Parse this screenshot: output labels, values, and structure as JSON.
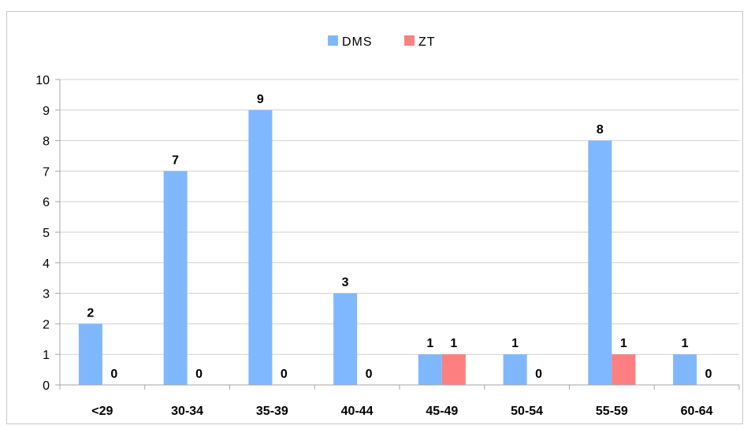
{
  "chart_data": {
    "type": "bar",
    "categories": [
      "<29",
      "30-34",
      "35-39",
      "40-44",
      "45-49",
      "50-54",
      "55-59",
      "60-64"
    ],
    "series": [
      {
        "name": "DMS",
        "values": [
          2,
          7,
          9,
          3,
          1,
          1,
          8,
          1
        ]
      },
      {
        "name": "ZT",
        "values": [
          0,
          0,
          0,
          0,
          1,
          0,
          1,
          0
        ]
      }
    ],
    "ylim": [
      0,
      10
    ],
    "yticks": [
      0,
      1,
      2,
      3,
      4,
      5,
      6,
      7,
      8,
      9,
      10
    ],
    "grid": true,
    "legend_position": "top-center",
    "data_labels": true,
    "colors": {
      "DMS": "#7fb8ff",
      "ZT": "#fd7f7f",
      "grid": "#d0d0d0",
      "axis": "#a6a6a6"
    }
  }
}
